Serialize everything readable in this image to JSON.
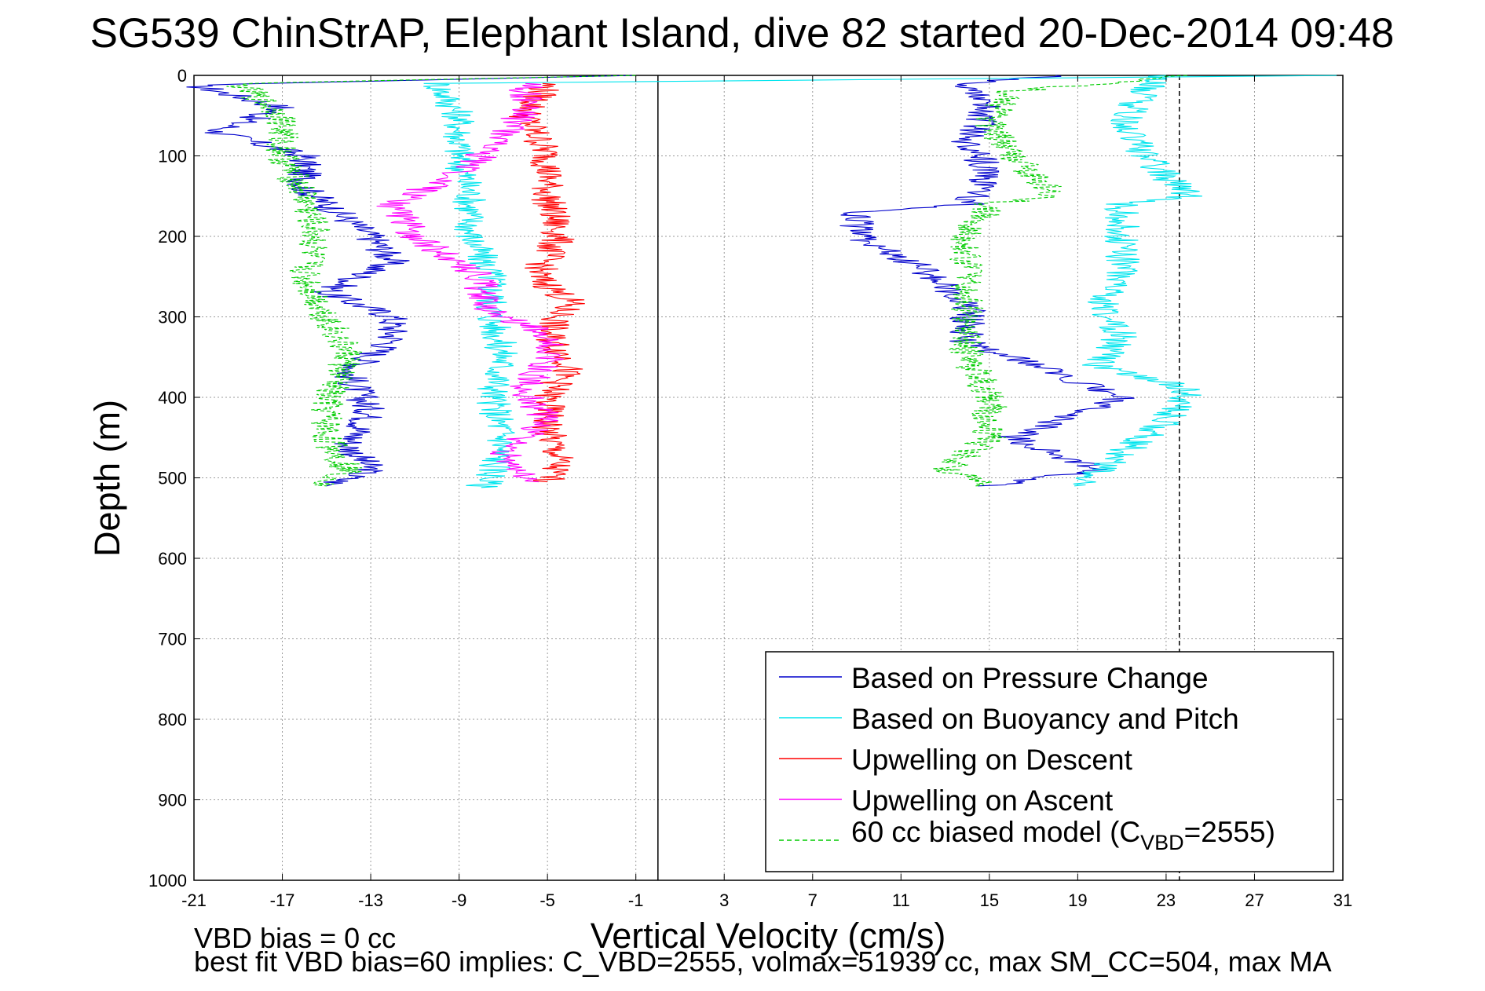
{
  "chart_data": {
    "type": "line",
    "title": "SG539 ChinStrAP, Elephant Island, dive 82 started 20-Dec-2014 09:48",
    "xlabel": "Vertical Velocity (cm/s)",
    "ylabel": "Depth (m)",
    "xlim": [
      -21,
      31
    ],
    "ylim": [
      1000,
      0
    ],
    "y_reversed": true,
    "x_ticks": [
      "-21",
      "-17",
      "-13",
      "-9",
      "-5",
      "-1",
      "3",
      "7",
      "11",
      "15",
      "19",
      "23",
      "27",
      "31"
    ],
    "y_ticks": [
      "0",
      "100",
      "200",
      "300",
      "400",
      "500",
      "600",
      "700",
      "800",
      "900",
      "1000"
    ],
    "grid": true,
    "legend_position": "bottom-right",
    "reference_lines": [
      {
        "x": 0,
        "style": "solid",
        "color": "#000000"
      },
      {
        "x": 23.6,
        "style": "dashed",
        "color": "#000000"
      }
    ],
    "series": [
      {
        "name": "Based on Pressure Change",
        "color": "#0000cc",
        "style": "solid",
        "descent": [
          [
            -1,
            0
          ],
          [
            -21,
            12
          ],
          [
            -17,
            40
          ],
          [
            -20,
            70
          ],
          [
            -16,
            100
          ],
          [
            -16,
            140
          ],
          [
            -13,
            200
          ],
          [
            -12,
            230
          ],
          [
            -15,
            270
          ],
          [
            -12,
            300
          ],
          [
            -12,
            330
          ],
          [
            -14,
            370
          ],
          [
            -13,
            420
          ],
          [
            -14,
            460
          ],
          [
            -13,
            490
          ],
          [
            -15,
            510
          ]
        ],
        "ascent": [
          [
            15,
            510
          ],
          [
            20,
            490
          ],
          [
            16,
            450
          ],
          [
            21,
            400
          ],
          [
            17,
            360
          ],
          [
            14,
            330
          ],
          [
            14,
            290
          ],
          [
            12,
            240
          ],
          [
            9,
            200
          ],
          [
            9,
            170
          ],
          [
            14,
            160
          ],
          [
            15,
            120
          ],
          [
            14,
            80
          ],
          [
            15,
            40
          ],
          [
            14,
            10
          ],
          [
            18,
            0
          ]
        ]
      },
      {
        "name": "Based on Buoyancy and Pitch",
        "color": "#00e5ee",
        "style": "solid",
        "descent": [
          [
            31,
            0
          ],
          [
            -10,
            10
          ],
          [
            -9,
            50
          ],
          [
            -9,
            100
          ],
          [
            -8.5,
            150
          ],
          [
            -8.5,
            200
          ],
          [
            -7.5,
            250
          ],
          [
            -7.5,
            300
          ],
          [
            -7,
            350
          ],
          [
            -7.5,
            400
          ],
          [
            -7,
            450
          ],
          [
            -7.5,
            500
          ],
          [
            -8,
            512
          ]
        ],
        "ascent": [
          [
            19,
            510
          ],
          [
            21,
            470
          ],
          [
            23,
            430
          ],
          [
            24,
            390
          ],
          [
            20,
            360
          ],
          [
            21,
            320
          ],
          [
            20,
            290
          ],
          [
            21,
            250
          ],
          [
            21,
            200
          ],
          [
            21,
            160
          ],
          [
            24,
            150
          ],
          [
            22,
            100
          ],
          [
            21,
            60
          ],
          [
            22,
            20
          ],
          [
            23,
            0
          ]
        ]
      },
      {
        "name": "Upwelling on Descent",
        "color": "#ff0000",
        "style": "solid",
        "descent": [
          [
            -5,
            10
          ],
          [
            -6,
            50
          ],
          [
            -5,
            100
          ],
          [
            -5,
            150
          ],
          [
            -4.5,
            200
          ],
          [
            -5.5,
            250
          ],
          [
            -4,
            280
          ],
          [
            -5,
            320
          ],
          [
            -4,
            360
          ],
          [
            -5,
            400
          ],
          [
            -5,
            440
          ],
          [
            -4.5,
            480
          ],
          [
            -5,
            505
          ]
        ]
      },
      {
        "name": "Upwelling on Ascent",
        "color": "#ff00ff",
        "style": "solid",
        "ascent": [
          [
            -6,
            505
          ],
          [
            -7,
            470
          ],
          [
            -5,
            430
          ],
          [
            -6,
            390
          ],
          [
            -5,
            350
          ],
          [
            -5,
            320
          ],
          [
            -8,
            290
          ],
          [
            -8,
            250
          ],
          [
            -11,
            200
          ],
          [
            -12,
            160
          ],
          [
            -9,
            120
          ],
          [
            -7,
            80
          ],
          [
            -6,
            40
          ],
          [
            -6,
            10
          ]
        ]
      },
      {
        "name": "60 cc biased model (C",
        "name_subscript": "VBD",
        "name_suffix": "=2555)",
        "color": "#00cc00",
        "style": "dashed",
        "descent": [
          [
            -1,
            0
          ],
          [
            -19,
            10
          ],
          [
            -17,
            50
          ],
          [
            -17,
            100
          ],
          [
            -16,
            150
          ],
          [
            -15.5,
            200
          ],
          [
            -16,
            250
          ],
          [
            -15,
            300
          ],
          [
            -14,
            350
          ],
          [
            -15,
            400
          ],
          [
            -15,
            450
          ],
          [
            -14,
            490
          ],
          [
            -15,
            510
          ]
        ],
        "ascent": [
          [
            15,
            510
          ],
          [
            13,
            490
          ],
          [
            15,
            450
          ],
          [
            15,
            400
          ],
          [
            14,
            350
          ],
          [
            14,
            300
          ],
          [
            14,
            250
          ],
          [
            14,
            200
          ],
          [
            15,
            160
          ],
          [
            18,
            150
          ],
          [
            16,
            100
          ],
          [
            15,
            60
          ],
          [
            16,
            20
          ],
          [
            24,
            0
          ]
        ]
      }
    ],
    "annotations": [
      "VBD bias = 0 cc",
      "best fit VBD bias=60 implies: C_VBD=2555, volmax=51939 cc, max SM_CC=504, max MA"
    ]
  }
}
